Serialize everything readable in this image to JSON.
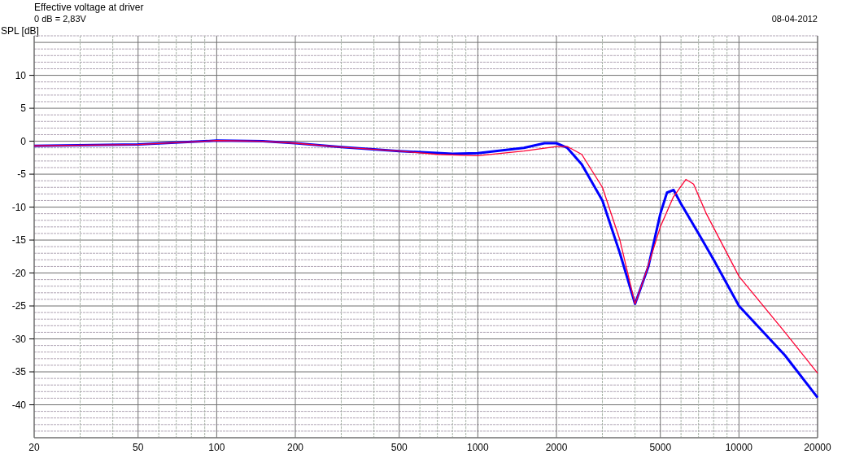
{
  "chart_data": {
    "type": "line",
    "title": "Effective voltage at driver",
    "subtitle": "0 dB = 2,83V",
    "ylabel": "SPL [dB]",
    "annotations": [
      "08-04-2012"
    ],
    "log": "x",
    "grid": true,
    "marker": "none",
    "line_style": "solid",
    "xlim": [
      20,
      20000
    ],
    "ylim": [
      -45,
      16
    ],
    "xticks": [
      20,
      {
        "value": 30,
        "label": null
      },
      {
        "value": 40,
        "label": null
      },
      50,
      {
        "value": 60,
        "label": null
      },
      {
        "value": 70,
        "label": null
      },
      {
        "value": 80,
        "label": null
      },
      {
        "value": 90,
        "label": null
      },
      100,
      200,
      {
        "value": 300,
        "label": null
      },
      {
        "value": 400,
        "label": null
      },
      500,
      {
        "value": 600,
        "label": null
      },
      {
        "value": 700,
        "label": null
      },
      {
        "value": 800,
        "label": null
      },
      {
        "value": 900,
        "label": null
      },
      1000,
      2000,
      {
        "value": 3000,
        "label": null
      },
      {
        "value": 4000,
        "label": null
      },
      5000,
      {
        "value": 6000,
        "label": null
      },
      {
        "value": 7000,
        "label": null
      },
      {
        "value": 8000,
        "label": null
      },
      {
        "value": 9000,
        "label": null
      },
      10000,
      20000
    ],
    "yticks": [
      {
        "value": -45,
        "label": null
      },
      {
        "value": -44,
        "label": null
      },
      {
        "value": -43,
        "label": null
      },
      {
        "value": -42,
        "label": null
      },
      {
        "value": -41,
        "label": null
      },
      -40,
      {
        "value": -39,
        "label": null
      },
      {
        "value": -38,
        "label": null
      },
      {
        "value": -37,
        "label": null
      },
      {
        "value": -36,
        "label": null
      },
      -35,
      {
        "value": -34,
        "label": null
      },
      {
        "value": -33,
        "label": null
      },
      {
        "value": -32,
        "label": null
      },
      {
        "value": -31,
        "label": null
      },
      -30,
      {
        "value": -29,
        "label": null
      },
      {
        "value": -28,
        "label": null
      },
      {
        "value": -27,
        "label": null
      },
      {
        "value": -26,
        "label": null
      },
      -25,
      {
        "value": -24,
        "label": null
      },
      {
        "value": -23,
        "label": null
      },
      {
        "value": -22,
        "label": null
      },
      {
        "value": -21,
        "label": null
      },
      -20,
      {
        "value": -19,
        "label": null
      },
      {
        "value": -18,
        "label": null
      },
      {
        "value": -17,
        "label": null
      },
      {
        "value": -16,
        "label": null
      },
      -15,
      {
        "value": -14,
        "label": null
      },
      {
        "value": -13,
        "label": null
      },
      {
        "value": -12,
        "label": null
      },
      {
        "value": -11,
        "label": null
      },
      -10,
      {
        "value": -9,
        "label": null
      },
      {
        "value": -8,
        "label": null
      },
      {
        "value": -7,
        "label": null
      },
      {
        "value": -6,
        "label": null
      },
      -5,
      {
        "value": -4,
        "label": null
      },
      {
        "value": -3,
        "label": null
      },
      {
        "value": -2,
        "label": null
      },
      {
        "value": -1,
        "label": null
      },
      0,
      {
        "value": 1,
        "label": null
      },
      {
        "value": 2,
        "label": null
      },
      {
        "value": 3,
        "label": null
      },
      {
        "value": 4,
        "label": null
      },
      5,
      {
        "value": 6,
        "label": null
      },
      {
        "value": 7,
        "label": null
      },
      {
        "value": 8,
        "label": null
      },
      {
        "value": 9,
        "label": null
      },
      10,
      {
        "value": 11,
        "label": null
      },
      {
        "value": 12,
        "label": null
      },
      {
        "value": 13,
        "label": null
      },
      {
        "value": 14,
        "label": null
      },
      {
        "value": 15,
        "label": null
      },
      {
        "value": 16,
        "label": null
      }
    ],
    "series": [
      {
        "color": "#ff0033",
        "x": [
          20,
          50,
          100,
          150,
          200,
          300,
          500,
          700,
          1000,
          1500,
          2000,
          2200,
          2500,
          3000,
          3500,
          4000,
          4400,
          5000,
          5600,
          6260,
          6700,
          7500,
          10000,
          15000,
          20000
        ],
        "values": [
          -0.7,
          -0.5,
          0.1,
          0,
          -0.3,
          -0.9,
          -1.5,
          -2.0,
          -2.2,
          -1.5,
          -0.8,
          -0.8,
          -2,
          -7,
          -15,
          -24.7,
          -20,
          -13,
          -8.5,
          -5.8,
          -6.5,
          -11,
          -20.5,
          -29,
          -35.2
        ]
      },
      {
        "color": "#0000ff",
        "x": [
          20,
          50,
          100,
          150,
          200,
          300,
          500,
          800,
          1000,
          1500,
          1800,
          2000,
          2200,
          2500,
          3000,
          3500,
          4000,
          4500,
          5000,
          5300,
          5620,
          6000,
          7000,
          8000,
          10000,
          15000,
          20000
        ],
        "values": [
          -0.7,
          -0.5,
          0.1,
          0,
          -0.3,
          -0.9,
          -1.5,
          -1.9,
          -1.8,
          -1.0,
          -0.3,
          -0.3,
          -1.0,
          -3.5,
          -9,
          -17,
          -24.7,
          -19,
          -11,
          -7.8,
          -7.4,
          -9.5,
          -14,
          -18,
          -25,
          -32.5,
          -38.9
        ]
      }
    ]
  }
}
